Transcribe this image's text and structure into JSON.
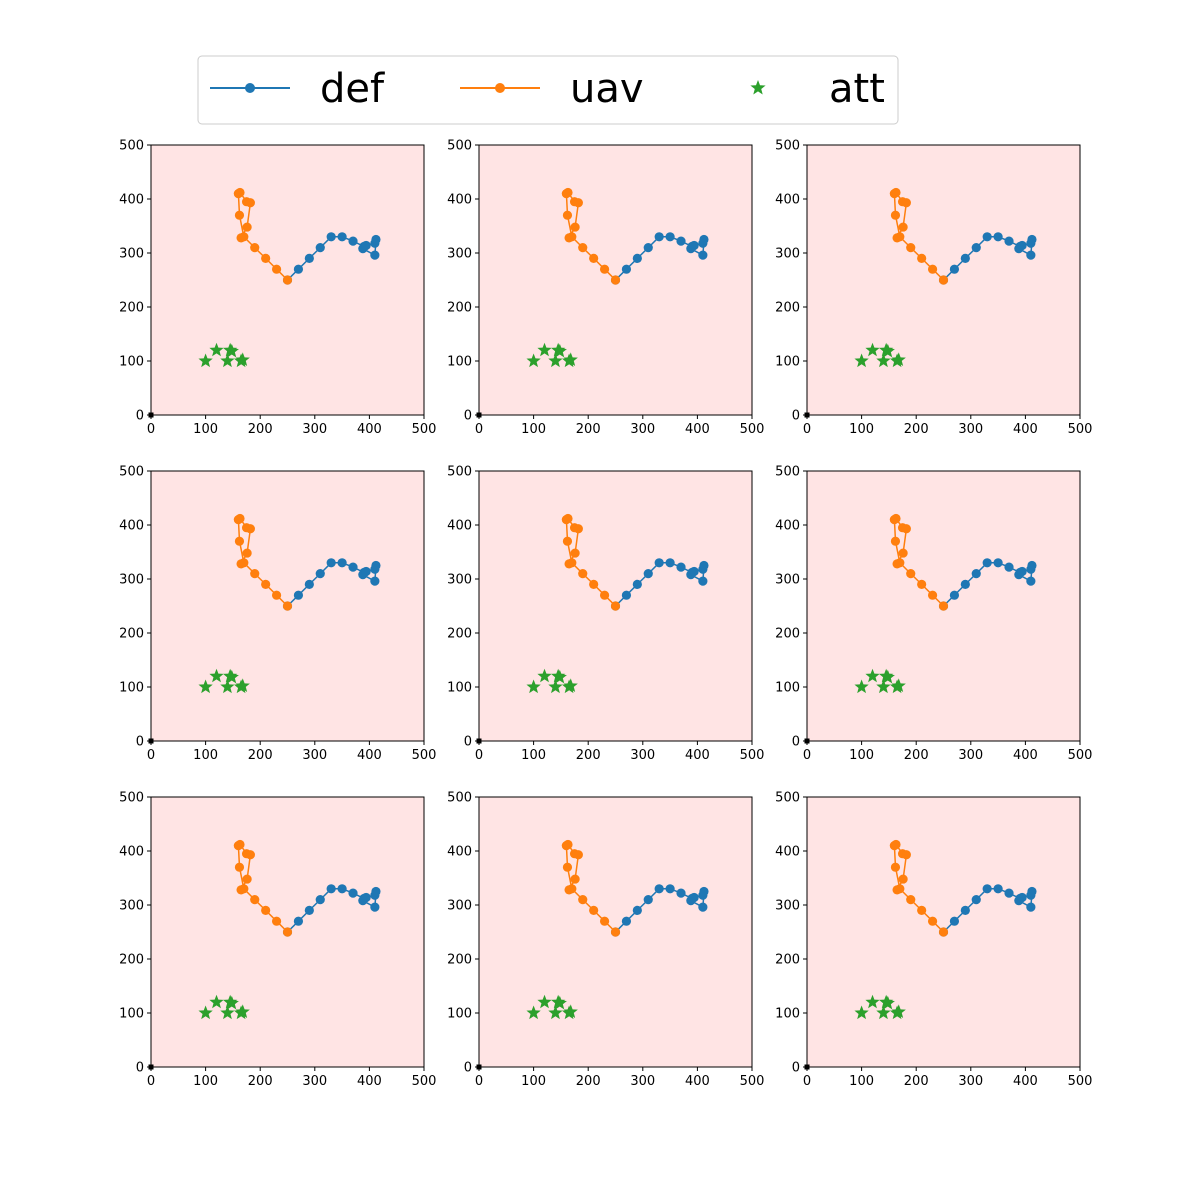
{
  "chart_data": {
    "type": "line",
    "layout": "3x3 grid of identical subplots",
    "xlim": [
      0,
      500
    ],
    "ylim": [
      0,
      500
    ],
    "x_ticks": [
      0,
      100,
      200,
      300,
      400,
      500
    ],
    "y_ticks": [
      0,
      100,
      200,
      300,
      400,
      500
    ],
    "background_color": "#ffe4e4",
    "legend": {
      "placement": "top-center",
      "columns": 3,
      "entries": [
        {
          "label": "def",
          "marker": "line-circle",
          "color": "#1f77b4"
        },
        {
          "label": "uav",
          "marker": "line-circle",
          "color": "#ff7f0e"
        },
        {
          "label": "att",
          "marker": "star",
          "color": "#2ca02c"
        }
      ]
    },
    "series": [
      {
        "name": "def",
        "color": "#1f77b4",
        "points": [
          [
            250,
            250
          ],
          [
            270,
            270
          ],
          [
            290,
            290
          ],
          [
            310,
            310
          ],
          [
            330,
            330
          ],
          [
            350,
            330
          ],
          [
            370,
            322
          ],
          [
            390,
            312
          ],
          [
            410,
            318
          ],
          [
            412,
            325
          ],
          [
            410,
            296
          ],
          [
            388,
            308
          ],
          [
            394,
            314
          ]
        ]
      },
      {
        "name": "uav",
        "color": "#ff7f0e",
        "points": [
          [
            250,
            250
          ],
          [
            230,
            270
          ],
          [
            210,
            290
          ],
          [
            190,
            310
          ],
          [
            170,
            330
          ],
          [
            162,
            370
          ],
          [
            160,
            410
          ],
          [
            163,
            412
          ],
          [
            175,
            395
          ],
          [
            182,
            393
          ],
          [
            176,
            348
          ],
          [
            165,
            328
          ]
        ]
      },
      {
        "name": "att",
        "color": "#2ca02c",
        "points": [
          [
            100,
            100
          ],
          [
            120,
            120
          ],
          [
            145,
            120
          ],
          [
            140,
            100
          ],
          [
            165,
            100
          ],
          [
            148,
            118
          ],
          [
            168,
            102
          ]
        ]
      }
    ],
    "origin_marker": {
      "x": 0,
      "y": 0,
      "color": "#000000"
    },
    "subplots": 9
  }
}
